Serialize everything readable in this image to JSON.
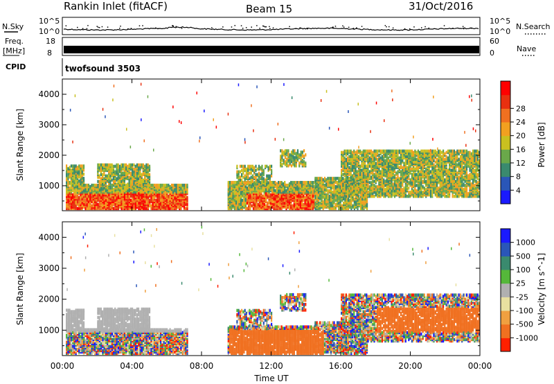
{
  "header": {
    "radar": "Rankin Inlet (fitACF)",
    "beam": "Beam 15",
    "date": "31/Oct/2016"
  },
  "noise_panel": {
    "left_label": "N.Sky",
    "right_label": "N.Search",
    "ticks": [
      "10^5",
      "10^0"
    ]
  },
  "freq_panel": {
    "left_label_1": "Freq.",
    "left_label_2": "[MHz]",
    "left_ticks": [
      "18",
      "8"
    ],
    "right_label": "Nave",
    "right_ticks": [
      "60",
      "0"
    ]
  },
  "cpid_panel": {
    "label": "CPID",
    "program": "twofsound 3503"
  },
  "x_axis": {
    "label": "Time UT",
    "ticks": [
      "00:00",
      "04:00",
      "08:00",
      "12:00",
      "16:00",
      "20:00",
      "00:00"
    ]
  },
  "chart_data": [
    {
      "type": "heatmap",
      "name": "power",
      "ylabel": "Slant Range [km]",
      "y_ticks": [
        1000,
        2000,
        3000,
        4000
      ],
      "ylim": [
        180,
        4500
      ],
      "xlim_hours": [
        0,
        24
      ],
      "colorbar_label": "Power [dB]",
      "colorbar_ticks": [
        "4",
        "8",
        "12",
        "16",
        "20",
        "24",
        "28"
      ],
      "colors": [
        "#1a1aff",
        "#2a56b8",
        "#3a8a6e",
        "#6aa84a",
        "#c9c020",
        "#f2a020",
        "#f07020",
        "#e83010",
        "#ff0000"
      ]
    },
    {
      "type": "heatmap",
      "name": "velocity",
      "ylabel": "Slant Range [km]",
      "y_ticks": [
        1000,
        2000,
        3000,
        4000
      ],
      "ylim": [
        180,
        4500
      ],
      "xlim_hours": [
        0,
        24
      ],
      "colorbar_label": "Velocity [m s^-1]",
      "colorbar_ticks": [
        "1000",
        "500",
        "100",
        "25",
        "-25",
        "-100",
        "-500",
        "-1000"
      ],
      "colors": [
        "#1a1aff",
        "#2a56b8",
        "#3a8a6e",
        "#55b83a",
        "#b0b0b0",
        "#e8e0a0",
        "#f0a040",
        "#f07020",
        "#ff2000"
      ]
    }
  ]
}
